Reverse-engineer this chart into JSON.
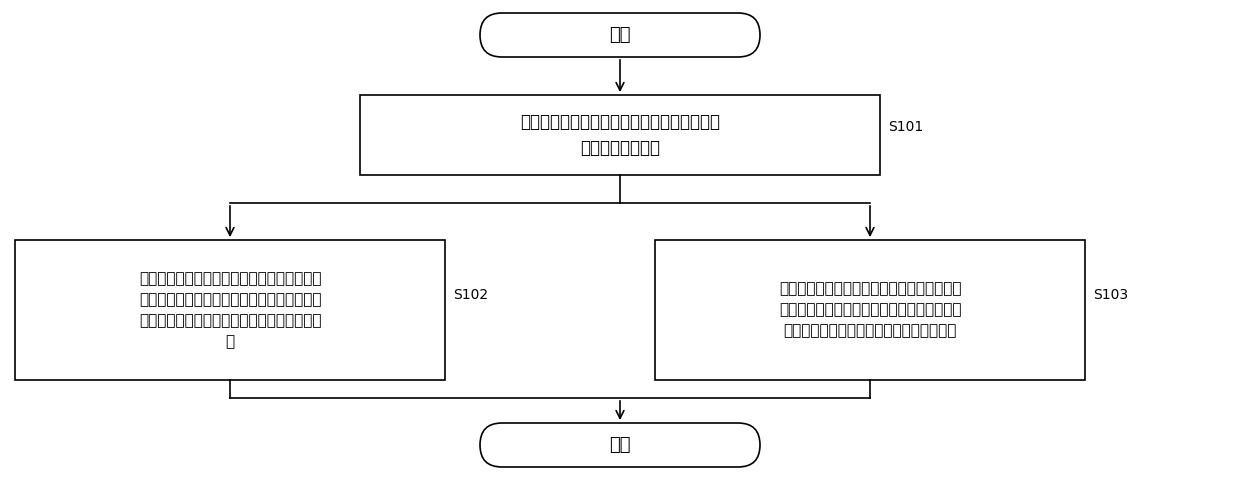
{
  "background_color": "#ffffff",
  "start_text": "开始",
  "step1_text": "接收第一测试要求，确定第一测试要求为接触\n测试或非接触测试",
  "step1_label": "S101",
  "step2_text": "当第一测试要求为非接触测试时，关闭双界面\n读写器的接触界面通讯，延时第一预设时长后\n，打开非接触界面通讯执行非接触界面案例测\n试",
  "step2_label": "S102",
  "step3_text": "当第一测试要求为接触测试时，关闭双界面读\n写器的非接触界面通讯，延时第二预设时长后\n，打开接触界面通讯执行接触界面案例测试",
  "step3_label": "S103",
  "end_text": "结束",
  "line_color": "#000000",
  "text_color": "#000000",
  "box_fill": "#ffffff",
  "box_edge": "#000000",
  "font_size_main": 13,
  "font_size_small": 12,
  "font_size_label": 10
}
